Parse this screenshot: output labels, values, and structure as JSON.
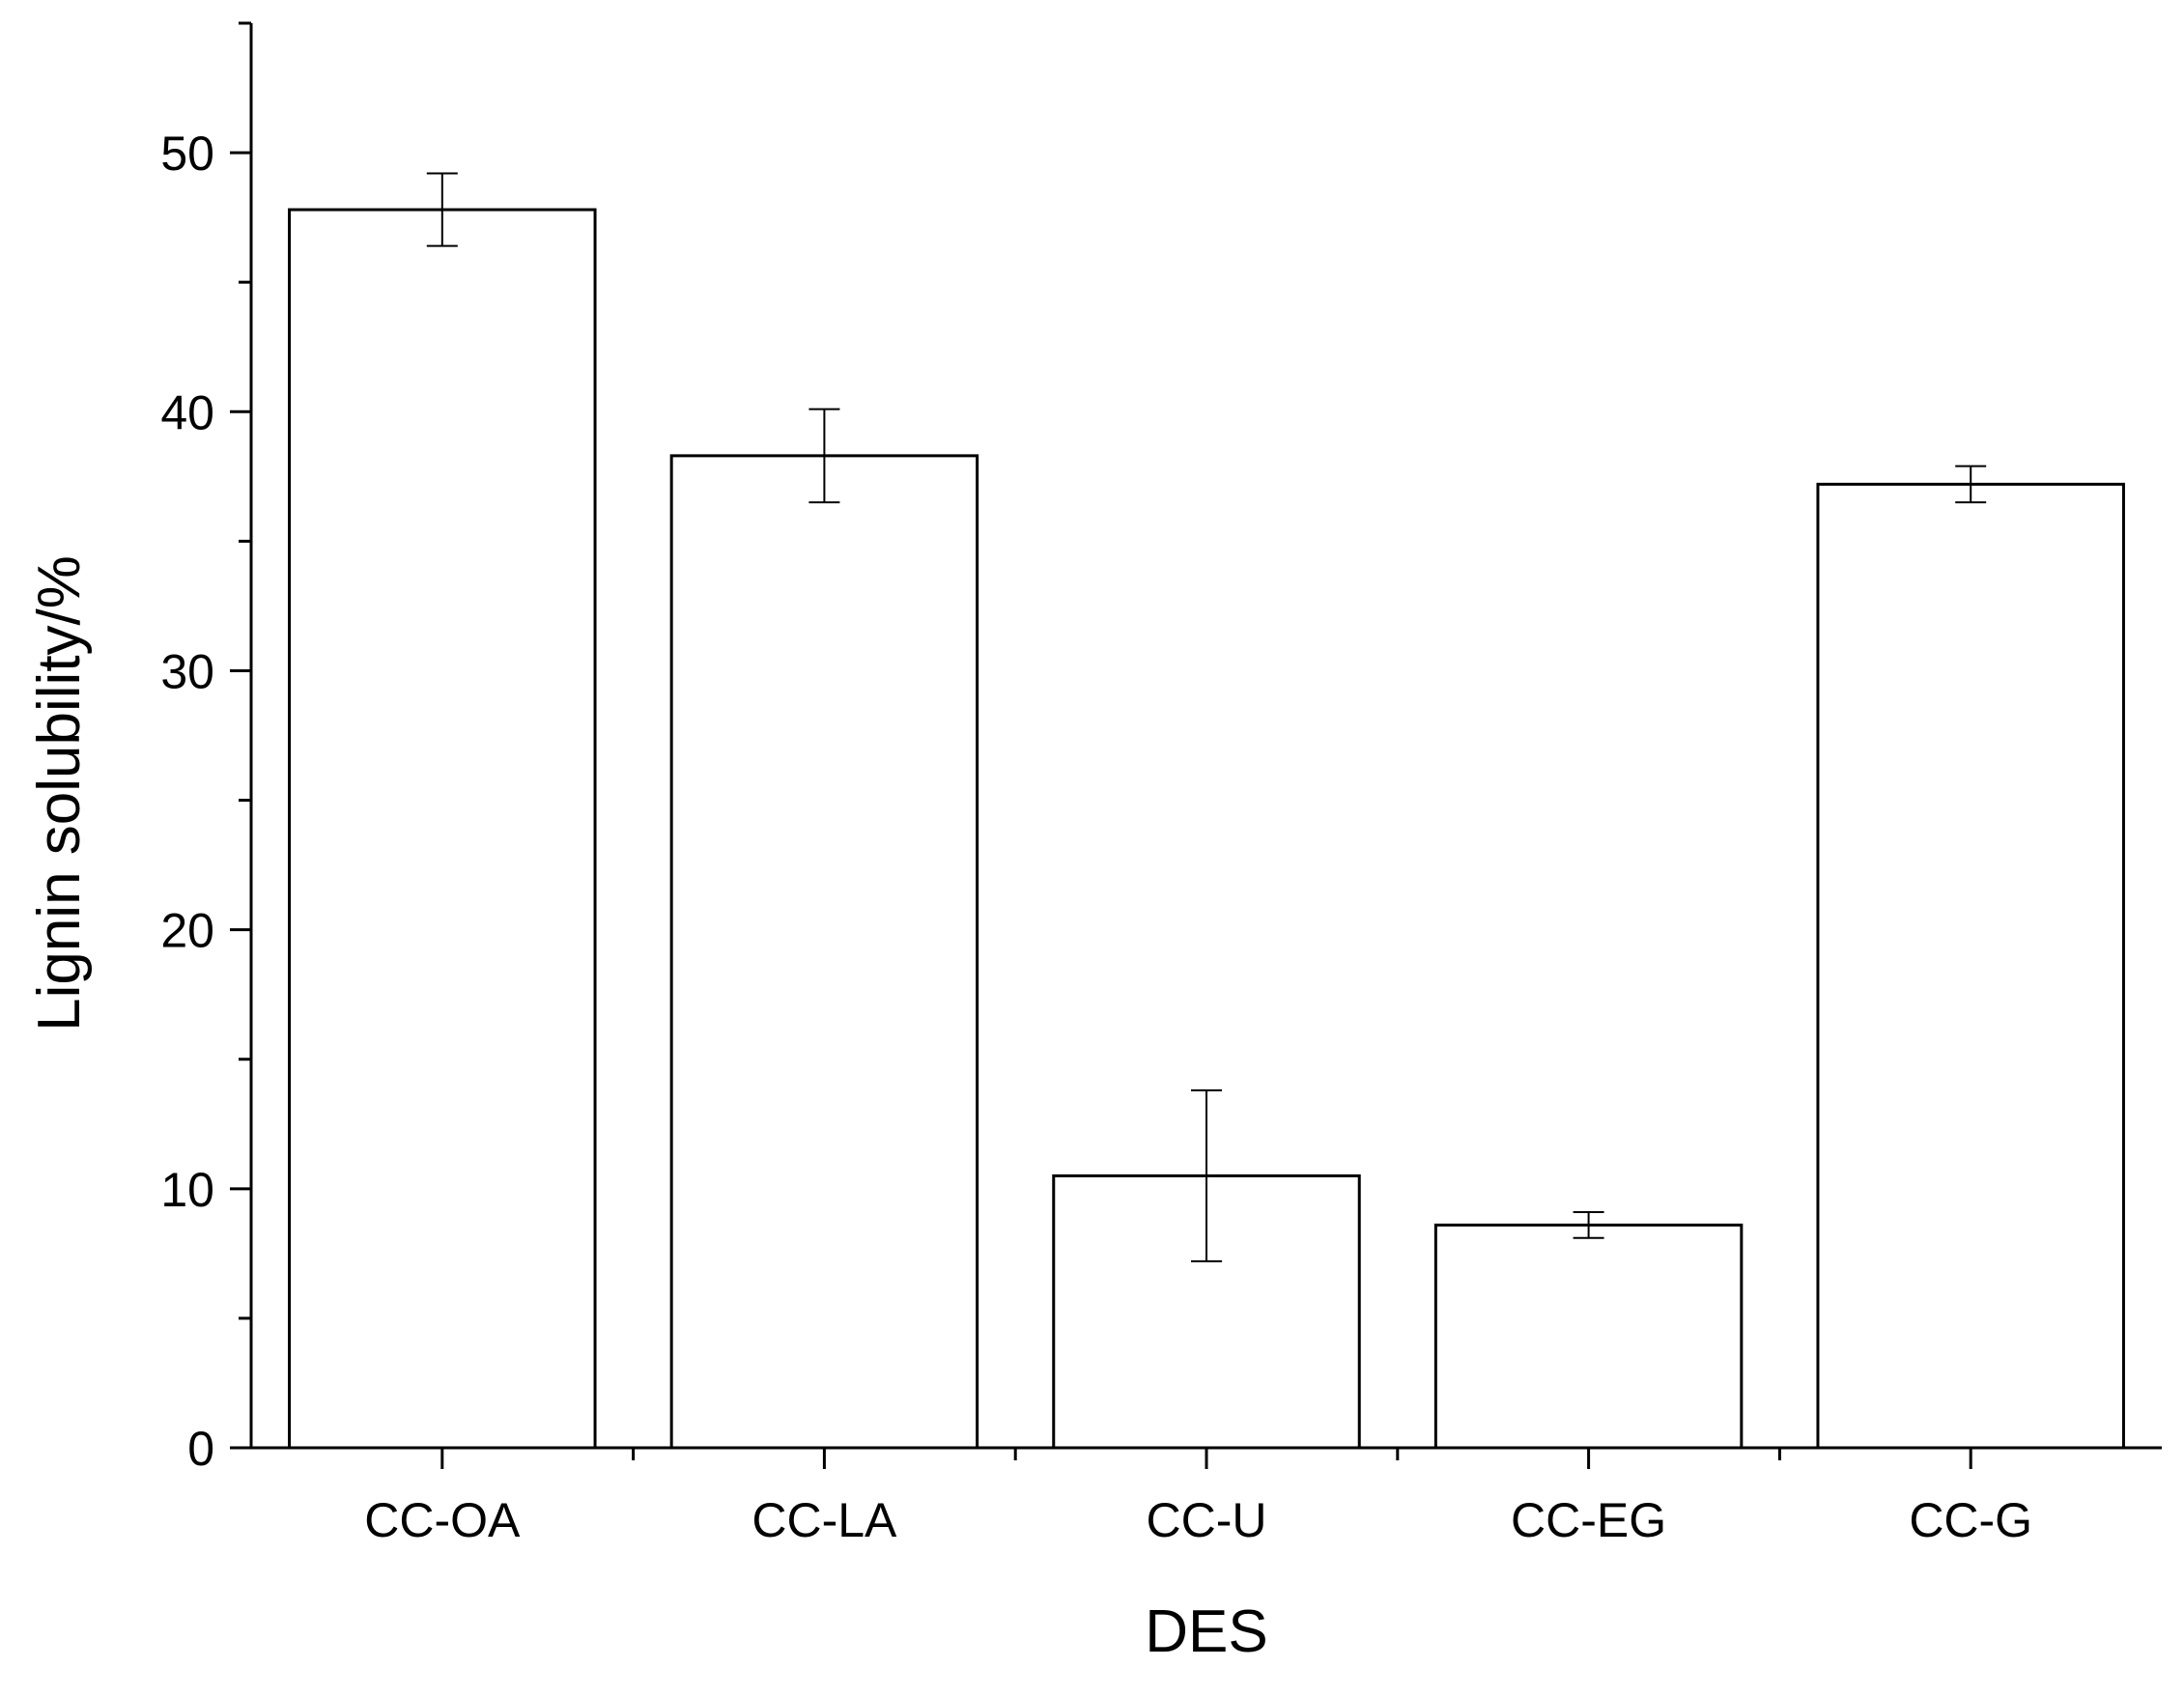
{
  "chart_data": {
    "type": "bar",
    "title": "",
    "xlabel": "DES",
    "ylabel": "Lignin solubility/%",
    "categories": [
      "CC-OA",
      "CC-LA",
      "CC-U",
      "CC-EG",
      "CC-G"
    ],
    "values": [
      47.8,
      38.3,
      10.5,
      8.6,
      37.2
    ],
    "error_bars": [
      1.4,
      1.8,
      3.3,
      0.5,
      0.7
    ],
    "ylim": [
      0,
      55
    ],
    "yticks_major": [
      0,
      10,
      20,
      30,
      40,
      50
    ],
    "yticks_major_labels": [
      "0",
      "10",
      "20",
      "30",
      "40",
      "50"
    ],
    "ytick_minor_step": 5,
    "bar_fill": "#ffffff",
    "bar_stroke": "#000000",
    "grid": false,
    "legend": "none"
  }
}
